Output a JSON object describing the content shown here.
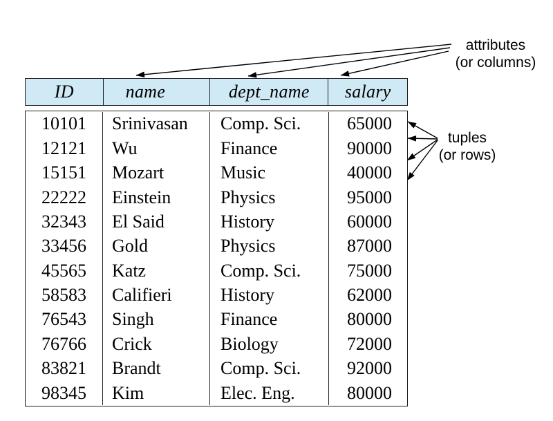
{
  "figure": {
    "type": "relation-instance-diagram",
    "callouts": {
      "attributes": {
        "line1": "attributes",
        "line2": "(or columns)"
      },
      "tuples": {
        "line1": "tuples",
        "line2": "(or rows)"
      }
    },
    "colors": {
      "header_bg": "#cfe9f5",
      "border": "#1f1f1f",
      "text": "#000000",
      "arrow": "#000000"
    },
    "chart_data": {
      "type": "table",
      "columns": [
        "ID",
        "name",
        "dept_name",
        "salary"
      ],
      "rows": [
        [
          "10101",
          "Srinivasan",
          "Comp. Sci.",
          "65000"
        ],
        [
          "12121",
          "Wu",
          "Finance",
          "90000"
        ],
        [
          "15151",
          "Mozart",
          "Music",
          "40000"
        ],
        [
          "22222",
          "Einstein",
          "Physics",
          "95000"
        ],
        [
          "32343",
          "El Said",
          "History",
          "60000"
        ],
        [
          "33456",
          "Gold",
          "Physics",
          "87000"
        ],
        [
          "45565",
          "Katz",
          "Comp. Sci.",
          "75000"
        ],
        [
          "58583",
          "Califieri",
          "History",
          "62000"
        ],
        [
          "76543",
          "Singh",
          "Finance",
          "80000"
        ],
        [
          "76766",
          "Crick",
          "Biology",
          "72000"
        ],
        [
          "83821",
          "Brandt",
          "Comp. Sci.",
          "92000"
        ],
        [
          "98345",
          "Kim",
          "Elec. Eng.",
          "80000"
        ]
      ]
    }
  }
}
